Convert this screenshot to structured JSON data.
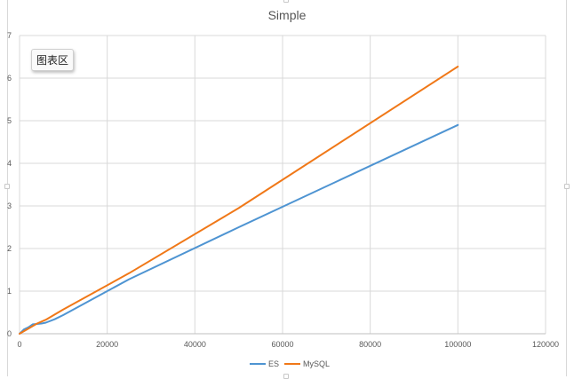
{
  "chart_data": {
    "type": "line",
    "title": "Simple",
    "xlabel": "",
    "ylabel": "",
    "xlim": [
      0,
      120000
    ],
    "ylim": [
      0,
      7
    ],
    "x_ticks": [
      "0",
      "20000",
      "40000",
      "60000",
      "80000",
      "100000",
      "120000"
    ],
    "y_ticks": [
      "0",
      "1",
      "2",
      "3",
      "4",
      "5",
      "6",
      "7"
    ],
    "grid": true,
    "legend_position": "bottom",
    "series": [
      {
        "name": "ES",
        "color": "#4e94d2",
        "x": [
          0,
          500,
          1000,
          2000,
          3000,
          4000,
          5000,
          6000,
          8000,
          10000,
          25000,
          50000,
          100000
        ],
        "y": [
          0.0,
          0.05,
          0.1,
          0.15,
          0.22,
          0.23,
          0.24,
          0.26,
          0.34,
          0.44,
          1.28,
          2.5,
          4.9
        ]
      },
      {
        "name": "MySQL",
        "color": "#f07818",
        "x": [
          0,
          1000,
          2000,
          4000,
          6000,
          8000,
          10000,
          25000,
          50000,
          100000
        ],
        "y": [
          0.0,
          0.06,
          0.12,
          0.24,
          0.33,
          0.45,
          0.57,
          1.42,
          2.95,
          6.27
        ]
      }
    ]
  },
  "tooltip": {
    "text": "图表区"
  }
}
